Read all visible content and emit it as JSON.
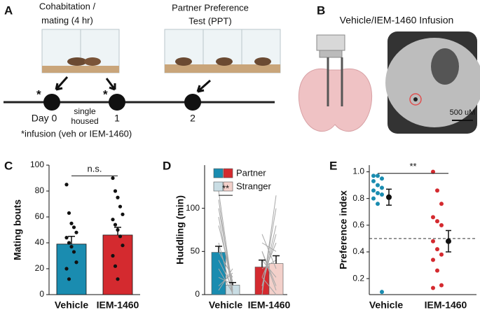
{
  "panel_a": {
    "label": "A",
    "cohab_line1": "Cohabitation /",
    "cohab_line2": "mating (4 hr)",
    "ppt_line1": "Partner Preference",
    "ppt_line2": "Test (PPT)",
    "star1": "*",
    "star2": "*",
    "day0": "Day 0",
    "day1": "1",
    "day2": "2",
    "single_line1": "single",
    "single_line2": "housed",
    "footnote": "*infusion (veh or IEM-1460)"
  },
  "panel_b": {
    "label": "B",
    "title": "Vehicle/IEM-1460 Infusion",
    "scale": "500 uM"
  },
  "chart_data": [
    {
      "type": "bar",
      "panel_label": "C",
      "y_label": "Mating bouts",
      "categories": [
        "Vehicle",
        "IEM-1460"
      ],
      "colors": [
        "#1a8cb0",
        "#d42a2f"
      ],
      "values": [
        39,
        46
      ],
      "errors": [
        6,
        6
      ],
      "points": [
        [
          85,
          63,
          55,
          52,
          48,
          44,
          40,
          37,
          33,
          25,
          20,
          12
        ],
        [
          90,
          80,
          75,
          68,
          62,
          58,
          54,
          50,
          45,
          38,
          30,
          22,
          12
        ]
      ],
      "annotation": "n.s.",
      "ylim": [
        0,
        100
      ],
      "yticks": [
        0,
        20,
        40,
        60,
        80,
        100
      ]
    },
    {
      "type": "paired-bar",
      "panel_label": "D",
      "y_label": "Huddling (min)",
      "categories": [
        "Vehicle",
        "IEM-1460"
      ],
      "series": [
        {
          "name": "Partner",
          "colors": [
            "#1a8cb0",
            "#d42a2f"
          ],
          "values": [
            49,
            32
          ],
          "errors": [
            7,
            8
          ],
          "points": [
            [
              120,
              110,
              100,
              90,
              80,
              60,
              50,
              40,
              30,
              20,
              10,
              5
            ],
            [
              0,
              5,
              10,
              20,
              30,
              40,
              50,
              60,
              70,
              50,
              10,
              20
            ]
          ]
        },
        {
          "name": "Stranger",
          "colors": [
            "#c9dde4",
            "#f3d0ca"
          ],
          "values": [
            11,
            36
          ],
          "errors": [
            3,
            9
          ],
          "points": [
            [
              5,
              0,
              10,
              3,
              15,
              0,
              20,
              8,
              2,
              12,
              25,
              30
            ],
            [
              115,
              100,
              80,
              60,
              40,
              20,
              10,
              50,
              30,
              5,
              70,
              0
            ]
          ]
        }
      ],
      "pair_color": "#a8a8a8",
      "annotation": "**",
      "ylim": [
        0,
        150
      ],
      "yticks": [
        0,
        50,
        100
      ]
    },
    {
      "type": "dot",
      "panel_label": "E",
      "y_label": "Preference index",
      "categories": [
        "Vehicle",
        "IEM-1460"
      ],
      "colors": [
        "#1a8cb0",
        "#d42a2f"
      ],
      "points": [
        [
          0.97,
          0.97,
          0.95,
          0.93,
          0.9,
          0.88,
          0.86,
          0.84,
          0.83,
          0.8,
          0.76,
          0.1
        ],
        [
          1.0,
          0.86,
          0.76,
          0.66,
          0.63,
          0.6,
          0.48,
          0.42,
          0.38,
          0.34,
          0.26,
          0.15,
          0.13
        ]
      ],
      "means": [
        0.81,
        0.48
      ],
      "errors": [
        0.06,
        0.08
      ],
      "reference": 0.5,
      "annotation": "**",
      "ylim": [
        0.08,
        1.05
      ],
      "yticks": [
        0.2,
        0.4,
        0.6,
        0.8,
        {
          "value": 1,
          "label": "1.0"
        }
      ]
    }
  ]
}
